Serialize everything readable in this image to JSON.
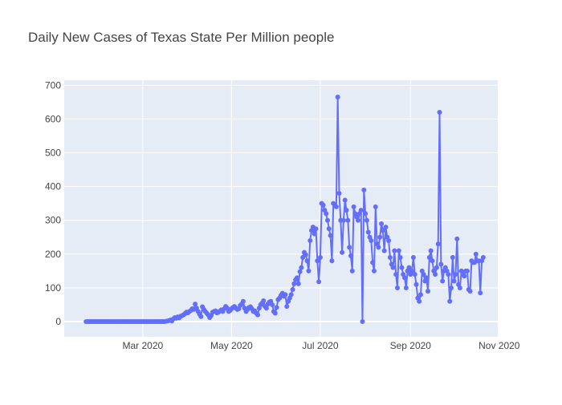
{
  "chart_data": {
    "type": "line",
    "title": "Daily New Cases of Texas State Per Million people",
    "xlabel": "",
    "ylabel": "",
    "x_range": [
      "2020-01-07",
      "2020-10-31"
    ],
    "ylim": [
      -45,
      715
    ],
    "x_ticks": [
      {
        "date": "2020-03-01",
        "label": "Mar 2020"
      },
      {
        "date": "2020-05-01",
        "label": "May 2020"
      },
      {
        "date": "2020-07-01",
        "label": "Jul 2020"
      },
      {
        "date": "2020-09-01",
        "label": "Sep 2020"
      },
      {
        "date": "2020-11-01",
        "label": "Nov 2020"
      }
    ],
    "y_ticks": [
      0,
      100,
      200,
      300,
      400,
      500,
      600,
      700
    ],
    "grid": true,
    "legend": "none",
    "colors": {
      "series": "#636efa",
      "plot_bg": "#e5ecf6",
      "grid": "#ffffff"
    },
    "series": [
      {
        "start_date": "2020-01-22",
        "values": [
          0,
          0,
          0,
          0,
          0,
          0,
          0,
          0,
          0,
          0,
          0,
          0,
          0,
          0,
          0,
          0,
          0,
          0,
          0,
          0,
          0,
          0,
          0,
          0,
          0,
          0,
          0,
          0,
          0,
          0,
          0,
          0,
          0,
          0,
          0,
          0,
          0,
          0,
          0,
          0,
          0,
          0,
          0,
          0,
          0,
          0,
          0,
          0,
          0,
          0,
          0,
          0,
          0,
          0,
          0,
          1,
          2,
          3,
          5,
          2,
          8,
          12,
          10,
          14,
          11,
          16,
          18,
          20,
          24,
          28,
          26,
          30,
          33,
          38,
          36,
          52,
          40,
          30,
          22,
          15,
          44,
          36,
          30,
          25,
          20,
          12,
          18,
          28,
          30,
          32,
          26,
          28,
          31,
          35,
          30,
          38,
          45,
          40,
          30,
          33,
          38,
          42,
          45,
          40,
          36,
          38,
          48,
          52,
          60,
          40,
          30,
          36,
          42,
          44,
          38,
          30,
          32,
          25,
          20,
          40,
          50,
          55,
          62,
          45,
          40,
          52,
          58,
          60,
          50,
          30,
          25,
          42,
          65,
          70,
          78,
          84,
          75,
          80,
          45,
          60,
          70,
          80,
          95,
          112,
          124,
          130,
          112,
          148,
          160,
          190,
          205,
          198,
          180,
          150,
          240,
          270,
          280,
          260,
          275,
          180,
          118,
          190,
          350,
          345,
          330,
          320,
          300,
          275,
          255,
          180,
          350,
          345,
          340,
          665,
          380,
          300,
          205,
          300,
          360,
          330,
          300,
          220,
          195,
          150,
          340,
          320,
          310,
          300,
          320,
          330,
          0,
          390,
          320,
          300,
          265,
          250,
          240,
          175,
          150,
          340,
          230,
          220,
          250,
          290,
          270,
          210,
          280,
          250,
          240,
          190,
          170,
          160,
          210,
          140,
          100,
          210,
          190,
          160,
          140,
          130,
          100,
          150,
          160,
          140,
          150,
          190,
          140,
          110,
          70,
          60,
          80,
          150,
          140,
          120,
          130,
          90,
          190,
          210,
          180,
          150,
          140,
          160,
          230,
          620,
          170,
          120,
          150,
          160,
          150,
          140,
          60,
          100,
          190,
          120,
          140,
          245,
          110,
          100,
          150,
          140,
          135,
          150,
          150,
          95,
          90,
          180,
          175,
          175,
          200,
          180,
          180,
          85,
          180,
          190
        ]
      }
    ]
  }
}
